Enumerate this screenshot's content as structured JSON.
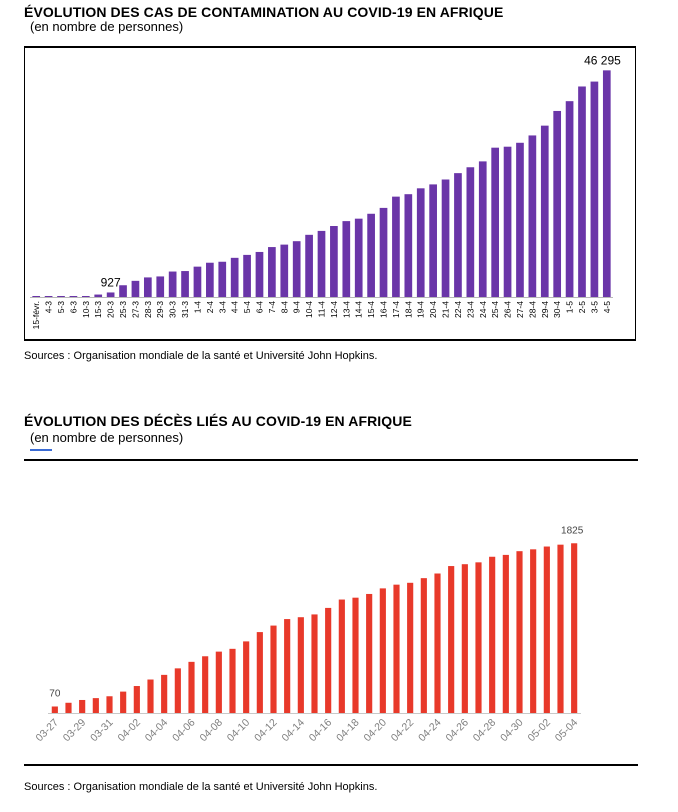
{
  "chart1": {
    "title": "ÉVOLUTION DES CAS DE CONTAMINATION AU COVID-19 EN AFRIQUE",
    "subtitle": "(en nombre de personnes)",
    "source": "Sources : Organisation mondiale de la santé et Université John Hopkins.",
    "bar_color": "#6a35a8"
  },
  "chart2": {
    "title": "ÉVOLUTION DES DÉCÈS LIÉS AU COVID-19 EN AFRIQUE",
    "subtitle": "(en nombre de personnes)",
    "source": "Sources : Organisation mondiale de la santé et Université John Hopkins.",
    "bar_color": "#e8392a"
  },
  "chart_data": [
    {
      "type": "bar",
      "title": "ÉVOLUTION DES CAS DE CONTAMINATION AU COVID-19 EN AFRIQUE",
      "subtitle": "(en nombre de personnes)",
      "categories": [
        "15-févr.",
        "4-3",
        "5-3",
        "6-3",
        "10-3",
        "15-3",
        "20-3",
        "25-3",
        "27-3",
        "28-3",
        "29-3",
        "30-3",
        "31-3",
        "1-4",
        "2-4",
        "3-4",
        "4-4",
        "5-4",
        "6-4",
        "7-4",
        "8-4",
        "9-4",
        "10-4",
        "11-4",
        "12-4",
        "13-4",
        "14-4",
        "15-4",
        "16-4",
        "17-4",
        "18-4",
        "19-4",
        "20-4",
        "21-4",
        "22-4",
        "23-4",
        "24-4",
        "25-4",
        "26-4",
        "27-4",
        "28-4",
        "29-4",
        "30-4",
        "1-5",
        "2-5",
        "3-5",
        "4-5"
      ],
      "values": [
        1,
        48,
        60,
        90,
        150,
        500,
        927,
        2400,
        3300,
        4000,
        4200,
        5200,
        5300,
        6200,
        7000,
        7200,
        8000,
        8600,
        9200,
        10200,
        10700,
        11400,
        12700,
        13500,
        14500,
        15500,
        16000,
        17000,
        18200,
        20500,
        21000,
        22200,
        23000,
        24000,
        25300,
        26500,
        27700,
        30500,
        30700,
        31500,
        33000,
        35000,
        38000,
        40000,
        43000,
        44000,
        46295
      ],
      "data_labels": [
        {
          "category": "20-3",
          "text": "927"
        },
        {
          "category": "4-5",
          "text": "46 295"
        }
      ],
      "ylim": [
        0,
        48000
      ],
      "grid": false
    },
    {
      "type": "bar",
      "title": "ÉVOLUTION DES DÉCÈS LIÉS AU COVID-19 EN AFRIQUE",
      "subtitle": "(en nombre de personnes)",
      "categories": [
        "03-27",
        "03-28",
        "03-29",
        "03-30",
        "03-31",
        "04-01",
        "04-02",
        "04-03",
        "04-04",
        "04-05",
        "04-06",
        "04-07",
        "04-08",
        "04-09",
        "04-10",
        "04-11",
        "04-12",
        "04-13",
        "04-14",
        "04-15",
        "04-16",
        "04-17",
        "04-18",
        "04-19",
        "04-20",
        "04-21",
        "04-22",
        "04-23",
        "04-24",
        "04-25",
        "04-26",
        "04-27",
        "04-28",
        "04-29",
        "04-30",
        "05-01",
        "05-02",
        "05-03",
        "05-04"
      ],
      "tick_labels": [
        "03-27",
        "03-29",
        "03-31",
        "04-02",
        "04-04",
        "04-06",
        "04-08",
        "04-10",
        "04-12",
        "04-14",
        "04-16",
        "04-18",
        "04-20",
        "04-22",
        "04-24",
        "04-26",
        "04-28",
        "04-30",
        "05-02",
        "05-04"
      ],
      "values": [
        70,
        110,
        140,
        160,
        180,
        230,
        290,
        360,
        410,
        480,
        550,
        610,
        660,
        690,
        770,
        870,
        940,
        1010,
        1030,
        1060,
        1130,
        1220,
        1240,
        1280,
        1340,
        1380,
        1400,
        1450,
        1500,
        1580,
        1600,
        1620,
        1680,
        1700,
        1740,
        1760,
        1790,
        1810,
        1825
      ],
      "data_labels": [
        {
          "category": "03-27",
          "text": "70"
        },
        {
          "category": "05-04",
          "text": "1825"
        }
      ],
      "ylim": [
        0,
        2000
      ],
      "grid": false
    }
  ]
}
